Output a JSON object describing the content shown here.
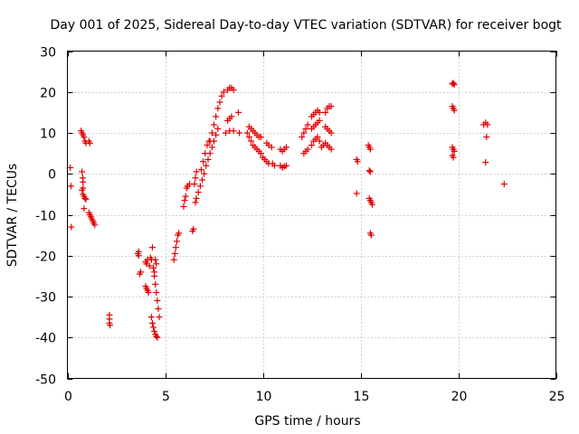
{
  "chart_data": {
    "type": "scatter",
    "title": "Day 001 of 2025, Sidereal Day-to-day VTEC variation (SDTVAR) for receiver bogt",
    "xlabel": "GPS time / hours",
    "ylabel": "SDTVAR / TECUs",
    "xlim": [
      0,
      25
    ],
    "ylim": [
      -50,
      30
    ],
    "xticks": [
      0,
      5,
      10,
      15,
      20,
      25
    ],
    "yticks": [
      -50,
      -40,
      -30,
      -20,
      -10,
      0,
      10,
      20,
      30
    ],
    "xtick_labels": [
      "0",
      "5",
      "10",
      "15",
      "20",
      "25"
    ],
    "ytick_labels": [
      "-50",
      "-40",
      "-30",
      "-20",
      "-10",
      "0",
      "10",
      "20",
      "30"
    ],
    "grid": true,
    "marker": "+",
    "marker_color": "#e00000",
    "series": [
      {
        "name": "SDTVAR",
        "points": [
          [
            0.15,
            1.5
          ],
          [
            0.18,
            -3.0
          ],
          [
            0.2,
            -13.0
          ],
          [
            0.7,
            10.5
          ],
          [
            0.75,
            10.0
          ],
          [
            0.8,
            9.5
          ],
          [
            0.85,
            9.0
          ],
          [
            0.9,
            8.0
          ],
          [
            0.95,
            7.5
          ],
          [
            0.75,
            0.5
          ],
          [
            0.78,
            -1.0
          ],
          [
            0.8,
            -2.0
          ],
          [
            0.75,
            -4.0
          ],
          [
            0.8,
            -5.0
          ],
          [
            0.85,
            -5.5
          ],
          [
            0.9,
            -6.0
          ],
          [
            0.95,
            -6.2
          ],
          [
            0.8,
            -3.5
          ],
          [
            0.85,
            -8.5
          ],
          [
            1.1,
            8.0
          ],
          [
            1.15,
            7.5
          ],
          [
            1.1,
            -9.5
          ],
          [
            1.15,
            -10.0
          ],
          [
            1.2,
            -10.5
          ],
          [
            1.25,
            -11.0
          ],
          [
            1.3,
            -11.5
          ],
          [
            1.35,
            -12.0
          ],
          [
            1.4,
            -12.5
          ],
          [
            2.15,
            -34.5
          ],
          [
            2.15,
            -35.5
          ],
          [
            2.15,
            -36.5
          ],
          [
            2.18,
            -37.0
          ],
          [
            3.6,
            -19.5
          ],
          [
            3.65,
            -19.0
          ],
          [
            3.65,
            -20.0
          ],
          [
            3.7,
            -24.5
          ],
          [
            3.75,
            -24.0
          ],
          [
            4.0,
            -21.5
          ],
          [
            4.05,
            -22.0
          ],
          [
            4.1,
            -21.0
          ],
          [
            4.2,
            -22.5
          ],
          [
            4.25,
            -20.5
          ],
          [
            4.3,
            -21.0
          ],
          [
            4.0,
            -27.5
          ],
          [
            4.05,
            -28.0
          ],
          [
            4.1,
            -28.5
          ],
          [
            4.15,
            -29.0
          ],
          [
            4.35,
            -18.0
          ],
          [
            4.4,
            -23.0
          ],
          [
            4.45,
            -24.0
          ],
          [
            4.5,
            -21.0
          ],
          [
            4.55,
            -22.0
          ],
          [
            4.3,
            -35.0
          ],
          [
            4.35,
            -36.5
          ],
          [
            4.4,
            -37.5
          ],
          [
            4.45,
            -38.5
          ],
          [
            4.5,
            -39.2
          ],
          [
            4.55,
            -39.7
          ],
          [
            4.6,
            -40.0
          ],
          [
            4.45,
            -25.0
          ],
          [
            4.5,
            -27.0
          ],
          [
            4.55,
            -29.0
          ],
          [
            4.6,
            -31.0
          ],
          [
            4.65,
            -33.0
          ],
          [
            4.7,
            -35.0
          ],
          [
            5.45,
            -21.0
          ],
          [
            5.5,
            -19.5
          ],
          [
            5.55,
            -18.0
          ],
          [
            5.6,
            -16.5
          ],
          [
            5.65,
            -15.0
          ],
          [
            5.7,
            -14.5
          ],
          [
            5.95,
            -8.0
          ],
          [
            6.0,
            -6.5
          ],
          [
            6.05,
            -5.5
          ],
          [
            6.1,
            -3.5
          ],
          [
            6.15,
            -3.0
          ],
          [
            6.25,
            -2.5
          ],
          [
            6.4,
            -14.0
          ],
          [
            6.45,
            -13.5
          ],
          [
            6.5,
            -2.5
          ],
          [
            6.55,
            -1.0
          ],
          [
            6.6,
            0.5
          ],
          [
            6.55,
            -7.0
          ],
          [
            6.6,
            -6.0
          ],
          [
            6.7,
            -4.5
          ],
          [
            6.8,
            -3.0
          ],
          [
            6.9,
            -1.5
          ],
          [
            7.0,
            0.0
          ],
          [
            6.85,
            1.0
          ],
          [
            6.95,
            3.0
          ],
          [
            7.05,
            5.0
          ],
          [
            7.15,
            7.0
          ],
          [
            7.25,
            8.0
          ],
          [
            7.1,
            2.0
          ],
          [
            7.2,
            3.5
          ],
          [
            7.3,
            5.0
          ],
          [
            7.4,
            6.5
          ],
          [
            7.5,
            8.0
          ],
          [
            7.6,
            9.5
          ],
          [
            7.7,
            11.0
          ],
          [
            7.3,
            8.0
          ],
          [
            7.4,
            10.0
          ],
          [
            7.5,
            12.0
          ],
          [
            7.6,
            14.0
          ],
          [
            7.7,
            16.0
          ],
          [
            7.8,
            17.5
          ],
          [
            7.9,
            19.0
          ],
          [
            8.0,
            20.0
          ],
          [
            8.2,
            20.5
          ],
          [
            8.3,
            21.0
          ],
          [
            8.4,
            21.0
          ],
          [
            8.5,
            20.5
          ],
          [
            8.2,
            13.0
          ],
          [
            8.3,
            13.5
          ],
          [
            8.4,
            14.0
          ],
          [
            8.5,
            10.5
          ],
          [
            8.3,
            10.5
          ],
          [
            8.1,
            10.0
          ],
          [
            8.75,
            15.0
          ],
          [
            8.8,
            10.0
          ],
          [
            9.3,
            11.5
          ],
          [
            9.4,
            11.0
          ],
          [
            9.5,
            10.5
          ],
          [
            9.6,
            10.0
          ],
          [
            9.7,
            9.5
          ],
          [
            9.8,
            9.0
          ],
          [
            9.9,
            9.0
          ],
          [
            9.2,
            10.0
          ],
          [
            9.3,
            9.0
          ],
          [
            9.4,
            8.0
          ],
          [
            9.5,
            7.0
          ],
          [
            9.6,
            6.5
          ],
          [
            9.7,
            6.0
          ],
          [
            9.8,
            5.5
          ],
          [
            9.9,
            5.0
          ],
          [
            10.0,
            4.0
          ],
          [
            10.1,
            3.5
          ],
          [
            10.2,
            3.0
          ],
          [
            10.3,
            2.5
          ],
          [
            10.2,
            7.5
          ],
          [
            10.3,
            7.0
          ],
          [
            10.45,
            6.5
          ],
          [
            10.5,
            2.5
          ],
          [
            10.6,
            2.0
          ],
          [
            10.9,
            6.0
          ],
          [
            11.0,
            5.5
          ],
          [
            11.1,
            6.0
          ],
          [
            11.2,
            6.5
          ],
          [
            10.9,
            2.0
          ],
          [
            11.0,
            1.5
          ],
          [
            11.1,
            1.8
          ],
          [
            11.2,
            2.0
          ],
          [
            12.0,
            9.0
          ],
          [
            12.1,
            10.0
          ],
          [
            12.2,
            11.0
          ],
          [
            12.3,
            12.0
          ],
          [
            12.1,
            5.0
          ],
          [
            12.2,
            5.5
          ],
          [
            12.3,
            6.0
          ],
          [
            12.5,
            14.0
          ],
          [
            12.6,
            14.5
          ],
          [
            12.7,
            15.0
          ],
          [
            12.8,
            15.5
          ],
          [
            12.9,
            15.0
          ],
          [
            12.5,
            11.0
          ],
          [
            12.6,
            11.5
          ],
          [
            12.7,
            12.0
          ],
          [
            12.8,
            12.5
          ],
          [
            12.9,
            13.0
          ],
          [
            12.5,
            7.0
          ],
          [
            12.6,
            8.0
          ],
          [
            12.7,
            8.5
          ],
          [
            12.8,
            9.0
          ],
          [
            12.9,
            8.0
          ],
          [
            13.0,
            6.5
          ],
          [
            13.1,
            7.0
          ],
          [
            13.2,
            7.5
          ],
          [
            13.3,
            7.0
          ],
          [
            13.4,
            6.5
          ],
          [
            13.5,
            6.0
          ],
          [
            13.2,
            15.0
          ],
          [
            13.3,
            16.0
          ],
          [
            13.4,
            16.5
          ],
          [
            13.5,
            16.5
          ],
          [
            13.2,
            11.5
          ],
          [
            13.3,
            11.0
          ],
          [
            13.4,
            10.5
          ],
          [
            13.5,
            10.0
          ],
          [
            14.8,
            3.5
          ],
          [
            14.85,
            3.0
          ],
          [
            14.8,
            -4.8
          ],
          [
            15.4,
            7.0
          ],
          [
            15.45,
            6.5
          ],
          [
            15.5,
            6.0
          ],
          [
            15.45,
            0.8
          ],
          [
            15.5,
            0.5
          ],
          [
            15.45,
            -6.0
          ],
          [
            15.5,
            -6.5
          ],
          [
            15.55,
            -7.0
          ],
          [
            15.6,
            -7.5
          ],
          [
            15.5,
            -14.5
          ],
          [
            15.55,
            -15.0
          ],
          [
            19.7,
            22.0
          ],
          [
            19.75,
            22.2
          ],
          [
            19.8,
            21.8
          ],
          [
            19.7,
            16.5
          ],
          [
            19.75,
            16.0
          ],
          [
            19.8,
            15.5
          ],
          [
            19.7,
            6.5
          ],
          [
            19.75,
            6.0
          ],
          [
            19.8,
            5.5
          ],
          [
            19.7,
            4.5
          ],
          [
            19.75,
            4.0
          ],
          [
            21.3,
            12.0
          ],
          [
            21.4,
            12.5
          ],
          [
            21.5,
            12.0
          ],
          [
            21.45,
            9.0
          ],
          [
            21.4,
            2.8
          ],
          [
            22.35,
            -2.5
          ]
        ]
      }
    ]
  }
}
